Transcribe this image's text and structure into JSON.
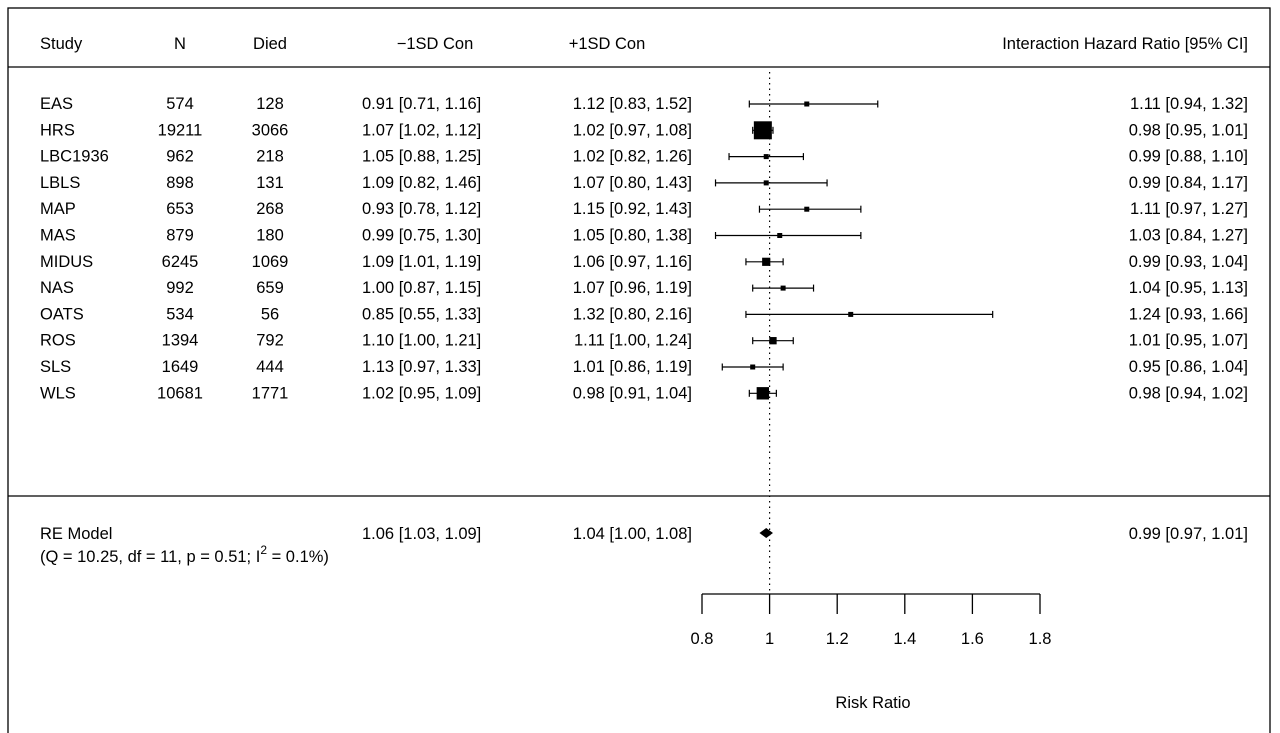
{
  "chart_data": {
    "type": "forest",
    "headers": {
      "study": "Study",
      "n": "N",
      "died": "Died",
      "minus": "−1SD Con",
      "plus": "+1SD Con",
      "effect": "Interaction Hazard Ratio [95% CI]"
    },
    "rows": [
      {
        "study": "EAS",
        "n": "574",
        "died": "128",
        "minus": "0.91 [0.71, 1.16]",
        "plus": "1.12 [0.83, 1.52]",
        "est": 1.11,
        "lo": 0.94,
        "hi": 1.32,
        "ci": "1.11 [0.94, 1.32]"
      },
      {
        "study": "HRS",
        "n": "19211",
        "died": "3066",
        "minus": "1.07 [1.02, 1.12]",
        "plus": "1.02 [0.97, 1.08]",
        "est": 0.98,
        "lo": 0.95,
        "hi": 1.01,
        "ci": "0.98 [0.95, 1.01]"
      },
      {
        "study": "LBC1936",
        "n": "962",
        "died": "218",
        "minus": "1.05 [0.88, 1.25]",
        "plus": "1.02 [0.82, 1.26]",
        "est": 0.99,
        "lo": 0.88,
        "hi": 1.1,
        "ci": "0.99 [0.88, 1.10]"
      },
      {
        "study": "LBLS",
        "n": "898",
        "died": "131",
        "minus": "1.09 [0.82, 1.46]",
        "plus": "1.07 [0.80, 1.43]",
        "est": 0.99,
        "lo": 0.84,
        "hi": 1.17,
        "ci": "0.99 [0.84, 1.17]"
      },
      {
        "study": "MAP",
        "n": "653",
        "died": "268",
        "minus": "0.93 [0.78, 1.12]",
        "plus": "1.15 [0.92, 1.43]",
        "est": 1.11,
        "lo": 0.97,
        "hi": 1.27,
        "ci": "1.11 [0.97, 1.27]"
      },
      {
        "study": "MAS",
        "n": "879",
        "died": "180",
        "minus": "0.99 [0.75, 1.30]",
        "plus": "1.05 [0.80, 1.38]",
        "est": 1.03,
        "lo": 0.84,
        "hi": 1.27,
        "ci": "1.03 [0.84, 1.27]"
      },
      {
        "study": "MIDUS",
        "n": "6245",
        "died": "1069",
        "minus": "1.09 [1.01, 1.19]",
        "plus": "1.06 [0.97, 1.16]",
        "est": 0.99,
        "lo": 0.93,
        "hi": 1.04,
        "ci": "0.99 [0.93, 1.04]"
      },
      {
        "study": "NAS",
        "n": "992",
        "died": "659",
        "minus": "1.00 [0.87, 1.15]",
        "plus": "1.07 [0.96, 1.19]",
        "est": 1.04,
        "lo": 0.95,
        "hi": 1.13,
        "ci": "1.04 [0.95, 1.13]"
      },
      {
        "study": "OATS",
        "n": "534",
        "died": "56",
        "minus": "0.85 [0.55, 1.33]",
        "plus": "1.32 [0.80, 2.16]",
        "est": 1.24,
        "lo": 0.93,
        "hi": 1.66,
        "ci": "1.24 [0.93, 1.66]"
      },
      {
        "study": "ROS",
        "n": "1394",
        "died": "792",
        "minus": "1.10 [1.00, 1.21]",
        "plus": "1.11 [1.00, 1.24]",
        "est": 1.01,
        "lo": 0.95,
        "hi": 1.07,
        "ci": "1.01 [0.95, 1.07]"
      },
      {
        "study": "SLS",
        "n": "1649",
        "died": "444",
        "minus": "1.13 [0.97, 1.33]",
        "plus": "1.01 [0.86, 1.19]",
        "est": 0.95,
        "lo": 0.86,
        "hi": 1.04,
        "ci": "0.95 [0.86, 1.04]"
      },
      {
        "study": "WLS",
        "n": "10681",
        "died": "1771",
        "minus": "1.02 [0.95, 1.09]",
        "plus": "0.98 [0.91, 1.04]",
        "est": 0.98,
        "lo": 0.94,
        "hi": 1.02,
        "ci": "0.98 [0.94, 1.02]"
      }
    ],
    "summary": {
      "label": "RE Model",
      "stats_prefix": "(Q = 10.25, df = 11, p = 0.51; I",
      "stats_sup": "2",
      "stats_suffix": " = 0.1%)",
      "minus": "1.06 [1.03, 1.09]",
      "plus": "1.04 [1.00, 1.08]",
      "est": 0.99,
      "lo": 0.97,
      "hi": 1.01,
      "ci": "0.99 [0.97, 1.01]"
    },
    "reference_line": 1,
    "xlim": [
      0.8,
      1.8
    ],
    "x_ticks": [
      0.8,
      1,
      1.2,
      1.4,
      1.6,
      1.8
    ],
    "x_tick_labels": [
      "0.8",
      "1",
      "1.2",
      "1.4",
      "1.6",
      "1.8"
    ],
    "xlabel": "Risk Ratio"
  }
}
